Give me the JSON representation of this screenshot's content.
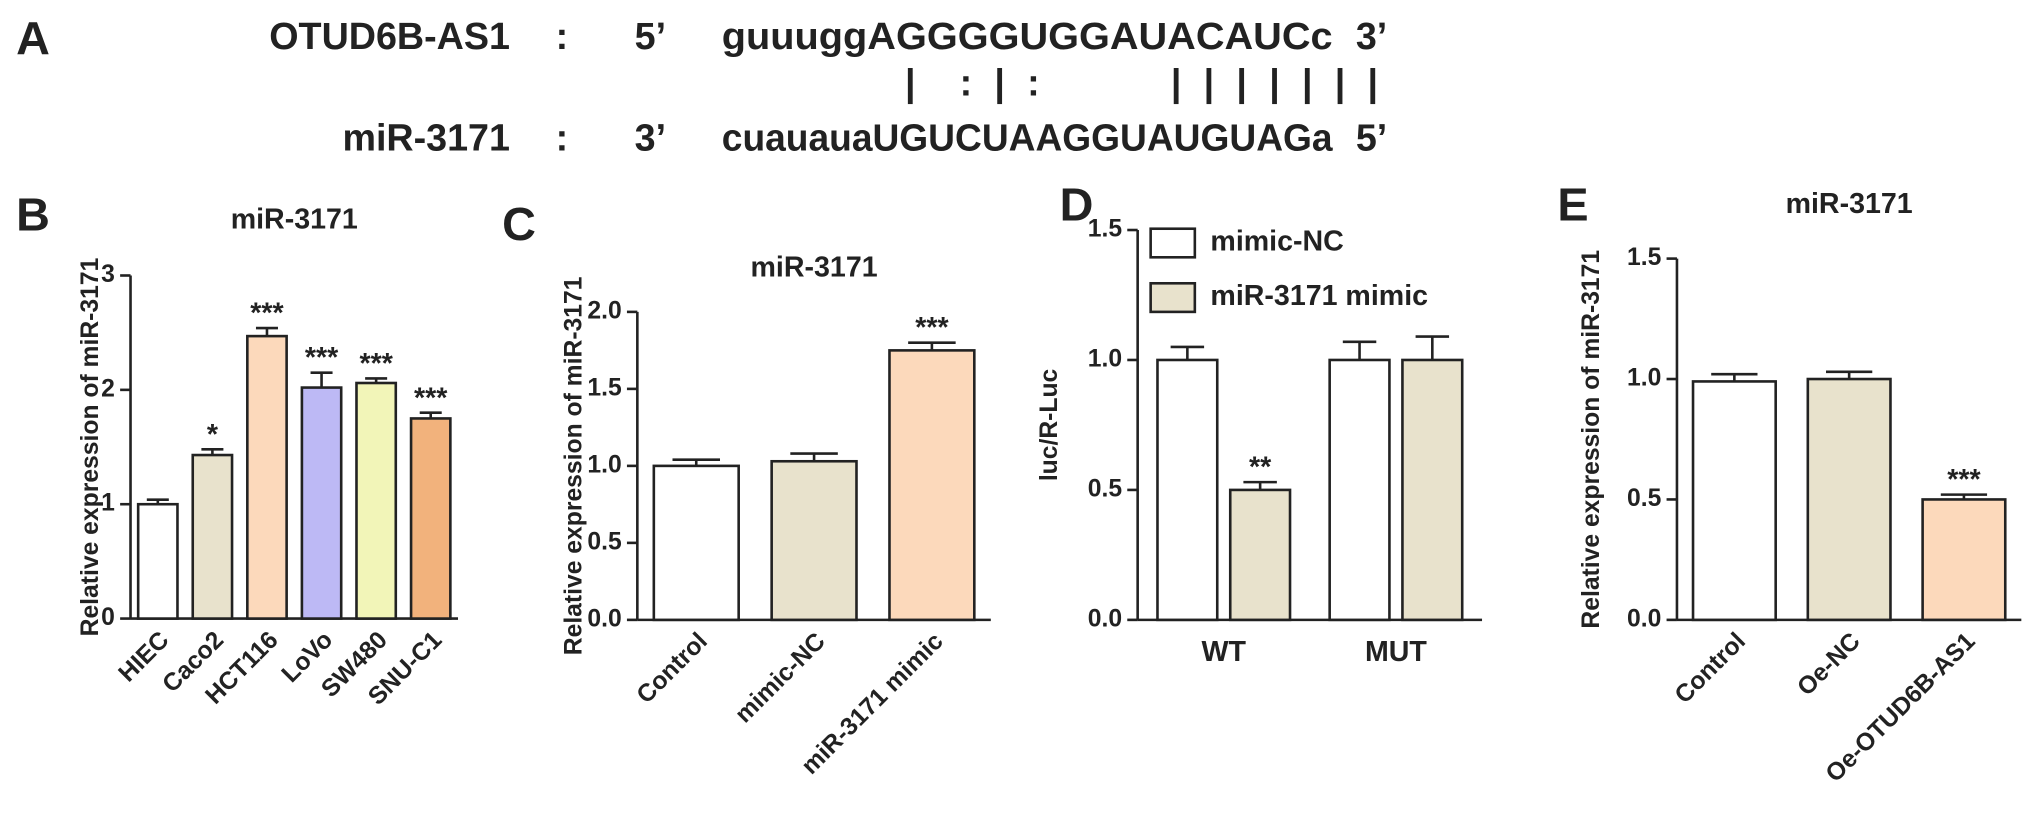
{
  "panel_a": {
    "letter": "A",
    "rows": [
      {
        "name": "OTUD6B-AS1",
        "colon": ":",
        "start": "5’",
        "sequence": "guuuggAGGGGUGGAUACAUCc",
        "end": "3’"
      },
      {
        "name": "miR-3171",
        "colon": ":",
        "start": "3’",
        "sequence": "cuauauaUGUCUAAGGUAUGUAGa",
        "end": "5’"
      }
    ],
    "pairing": "|    :  |  :            |  |  |  |  |  |  |"
  },
  "chart_data": [
    {
      "type": "bar",
      "panel": "B",
      "title": "miR-3171",
      "ylabel": "Relative expression of miR-3171",
      "categories": [
        "HIEC",
        "Caco2",
        "HCT116",
        "LoVo",
        "SW480",
        "SNU-C1"
      ],
      "values": [
        1.0,
        1.43,
        2.47,
        2.02,
        2.06,
        1.75
      ],
      "errors": [
        0.04,
        0.05,
        0.07,
        0.13,
        0.04,
        0.05
      ],
      "colors": [
        "#ffffff",
        "#e8e2cc",
        "#fcd9bb",
        "#bdb9f5",
        "#f2f5b8",
        "#f2b27c"
      ],
      "annotations": [
        null,
        "*",
        "***",
        "***",
        "***",
        "***"
      ],
      "ylim": [
        0,
        3
      ],
      "yticks": [
        0,
        1,
        2,
        3
      ],
      "rotated_labels": true
    },
    {
      "type": "bar",
      "panel": "C",
      "title": "miR-3171",
      "ylabel": "Relative expression of miR-3171",
      "categories": [
        "Control",
        "mimic-NC",
        "miR-3171 mimic"
      ],
      "values": [
        1.0,
        1.03,
        1.75
      ],
      "errors": [
        0.04,
        0.05,
        0.05
      ],
      "colors": [
        "#ffffff",
        "#e8e2cc",
        "#fcd9bb"
      ],
      "annotations": [
        null,
        null,
        "***"
      ],
      "ylim": [
        0,
        2
      ],
      "yticks": [
        {
          "value": 0,
          "label": "0.0"
        },
        0.5,
        {
          "value": 1,
          "label": "1.0"
        },
        1.5,
        {
          "value": 2,
          "label": "2.0"
        }
      ],
      "rotated_labels": true
    },
    {
      "type": "grouped_bar",
      "panel": "D",
      "ylabel": "luc/R-Luc",
      "categories": [
        "WT",
        "MUT"
      ],
      "series": [
        {
          "name": "mimic-NC",
          "color": "#ffffff",
          "values": [
            1.0,
            1.0
          ],
          "errors": [
            0.05,
            0.07
          ],
          "annotations": [
            null,
            null
          ]
        },
        {
          "name": "miR-3171 mimic",
          "color": "#e8e2cc",
          "values": [
            0.5,
            1.0
          ],
          "errors": [
            0.03,
            0.09
          ],
          "annotations": [
            "**",
            null
          ]
        }
      ],
      "ylim": [
        0,
        1.5
      ],
      "yticks": [
        {
          "value": 0,
          "label": "0.0"
        },
        0.5,
        {
          "value": 1,
          "label": "1.0"
        },
        1.5
      ],
      "legend": "upper left",
      "rotated_labels": false
    },
    {
      "type": "bar",
      "panel": "E",
      "title": "miR-3171",
      "ylabel": "Relative expression of miR-3171",
      "categories": [
        "Control",
        "Oe-NC",
        "Oe-OTUD6B-AS1"
      ],
      "values": [
        0.99,
        1.0,
        0.5
      ],
      "errors": [
        0.03,
        0.03,
        0.02
      ],
      "colors": [
        "#ffffff",
        "#e8e2cc",
        "#fcd9bb"
      ],
      "annotations": [
        null,
        null,
        "***"
      ],
      "ylim": [
        0,
        1.5
      ],
      "yticks": [
        {
          "value": 0,
          "label": "0.0"
        },
        0.5,
        {
          "value": 1,
          "label": "1.0"
        },
        1.5
      ],
      "rotated_labels": true
    }
  ]
}
